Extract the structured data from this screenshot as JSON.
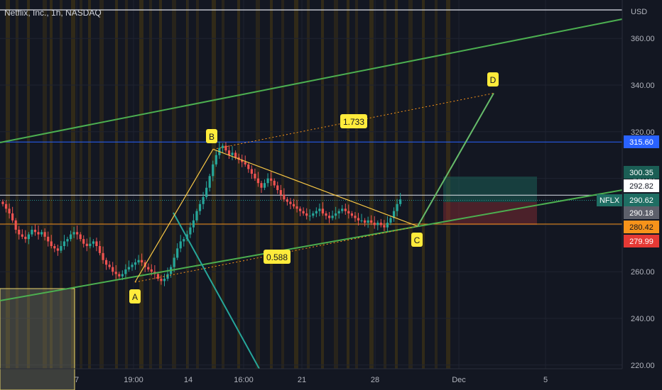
{
  "header": {
    "title": "Netflix, Inc., 1h, NASDAQ"
  },
  "colors": {
    "background": "#131722",
    "up": "#26a69a",
    "down": "#ef5350",
    "channel": "#4caf50",
    "pattern_leg": "#66bb6a",
    "yellow_line": "#f9c846",
    "orange_line": "#f7931a",
    "blue_line": "#2962ff",
    "teal_ray": "#26a69a",
    "label_yellow": "#ffeb3b",
    "session_band": "#3a2f16"
  },
  "axis": {
    "currency": "USD",
    "y_ticks": [
      "360.00",
      "340.00",
      "320.00",
      "300.00",
      "280.00",
      "260.00",
      "240.00",
      "220.00"
    ],
    "x_ticks": [
      "7",
      "19:00",
      "14",
      "16:00",
      "21",
      "28",
      "Dec",
      "5"
    ]
  },
  "price_tags": [
    {
      "name": "line-top",
      "value": "315.60",
      "bg": "#2962ff",
      "fg": "#ffffff"
    },
    {
      "name": "target-box-top",
      "value": "300.35",
      "bg": "#1b5e55",
      "fg": "#ffffff"
    },
    {
      "name": "white-line",
      "value": "292.82",
      "bg": "#ffffff",
      "fg": "#131722"
    },
    {
      "name": "last-price",
      "value": "290.62",
      "bg": "#1f6e63",
      "fg": "#ffffff"
    },
    {
      "name": "gray",
      "value": "290.18",
      "bg": "#5d606b",
      "fg": "#ffffff"
    },
    {
      "name": "orange",
      "value": "280.42",
      "bg": "#f7931a",
      "fg": "#131722"
    },
    {
      "name": "stop",
      "value": "279.99",
      "bg": "#e53935",
      "fg": "#ffffff"
    }
  ],
  "symbol_tag": "NFLX",
  "points": {
    "A": "A",
    "B": "B",
    "C": "C",
    "D": "D"
  },
  "ratios": {
    "bc": "1.733",
    "ab": "0.588"
  },
  "chart_data": {
    "type": "candlestick",
    "title": "Netflix, Inc., 1h, NASDAQ",
    "yunit": "USD",
    "ylim": [
      217,
      371
    ],
    "horizontal_levels": [
      366.0,
      315.6,
      292.82,
      280.42
    ],
    "pattern_points": {
      "A": {
        "price": 255.5
      },
      "B": {
        "price": 312.5
      },
      "C": {
        "price": 279.5
      },
      "D": {
        "price": 336.5
      }
    },
    "closes": [
      289,
      287,
      285,
      282,
      278,
      276,
      275,
      274,
      276,
      278,
      277,
      276,
      277,
      275,
      273,
      271,
      270,
      269,
      271,
      273,
      274,
      276,
      277,
      276,
      274,
      272,
      271,
      272,
      273,
      271,
      268,
      265,
      263,
      262,
      260,
      259,
      258,
      259,
      261,
      262,
      263,
      264,
      265,
      264,
      262,
      261,
      260,
      259,
      257,
      256,
      257,
      259,
      262,
      266,
      270,
      273,
      274,
      276,
      279,
      282,
      286,
      289,
      292,
      296,
      301,
      306,
      310,
      313,
      314,
      312,
      310,
      311,
      309,
      308,
      307,
      306,
      304,
      302,
      300,
      298,
      296,
      298,
      300,
      299,
      297,
      295,
      293,
      291,
      290,
      289,
      288,
      287,
      286,
      285,
      284,
      284,
      285,
      286,
      287,
      285,
      284,
      283,
      284,
      285,
      286,
      287,
      286,
      285,
      284,
      283,
      282,
      282,
      281,
      282,
      281,
      280,
      281,
      280,
      279,
      281,
      283,
      286,
      289,
      291
    ]
  }
}
